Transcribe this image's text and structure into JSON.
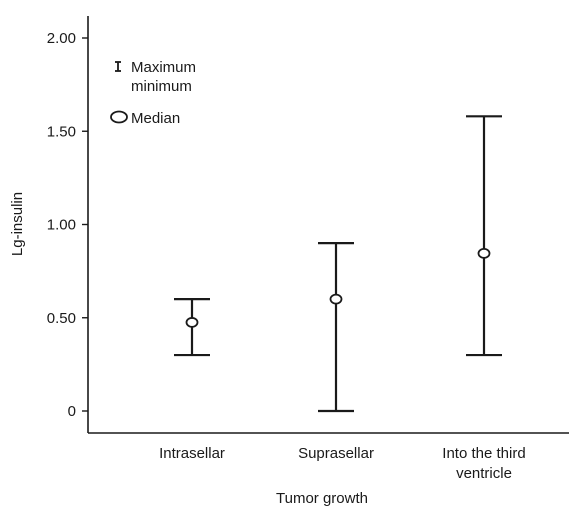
{
  "chart_data": {
    "type": "range",
    "xlabel": "Tumor growth",
    "ylabel": "Lg-insulin",
    "ylim": [
      0,
      2.0
    ],
    "yticks": [
      "0",
      "0.50",
      "1.00",
      "1.50",
      "2.00"
    ],
    "ytick_values": [
      0,
      0.5,
      1.0,
      1.5,
      2.0
    ],
    "categories": [
      [
        "Intrasellar"
      ],
      [
        "Suprasellar"
      ],
      [
        "Into the third",
        "ventricle"
      ]
    ],
    "series": [
      {
        "stat": "maximum",
        "values": [
          0.6,
          0.9,
          1.58
        ]
      },
      {
        "stat": "minimum",
        "values": [
          0.3,
          0.0,
          0.3
        ]
      },
      {
        "stat": "median",
        "values": [
          0.475,
          0.6,
          0.845
        ]
      }
    ],
    "legend": {
      "position": "top-left",
      "entries": [
        {
          "symbol": "errorbar",
          "lines": [
            "Maximum",
            "minimum"
          ]
        },
        {
          "symbol": "circle",
          "lines": [
            "Median"
          ]
        }
      ]
    },
    "grid": false
  }
}
